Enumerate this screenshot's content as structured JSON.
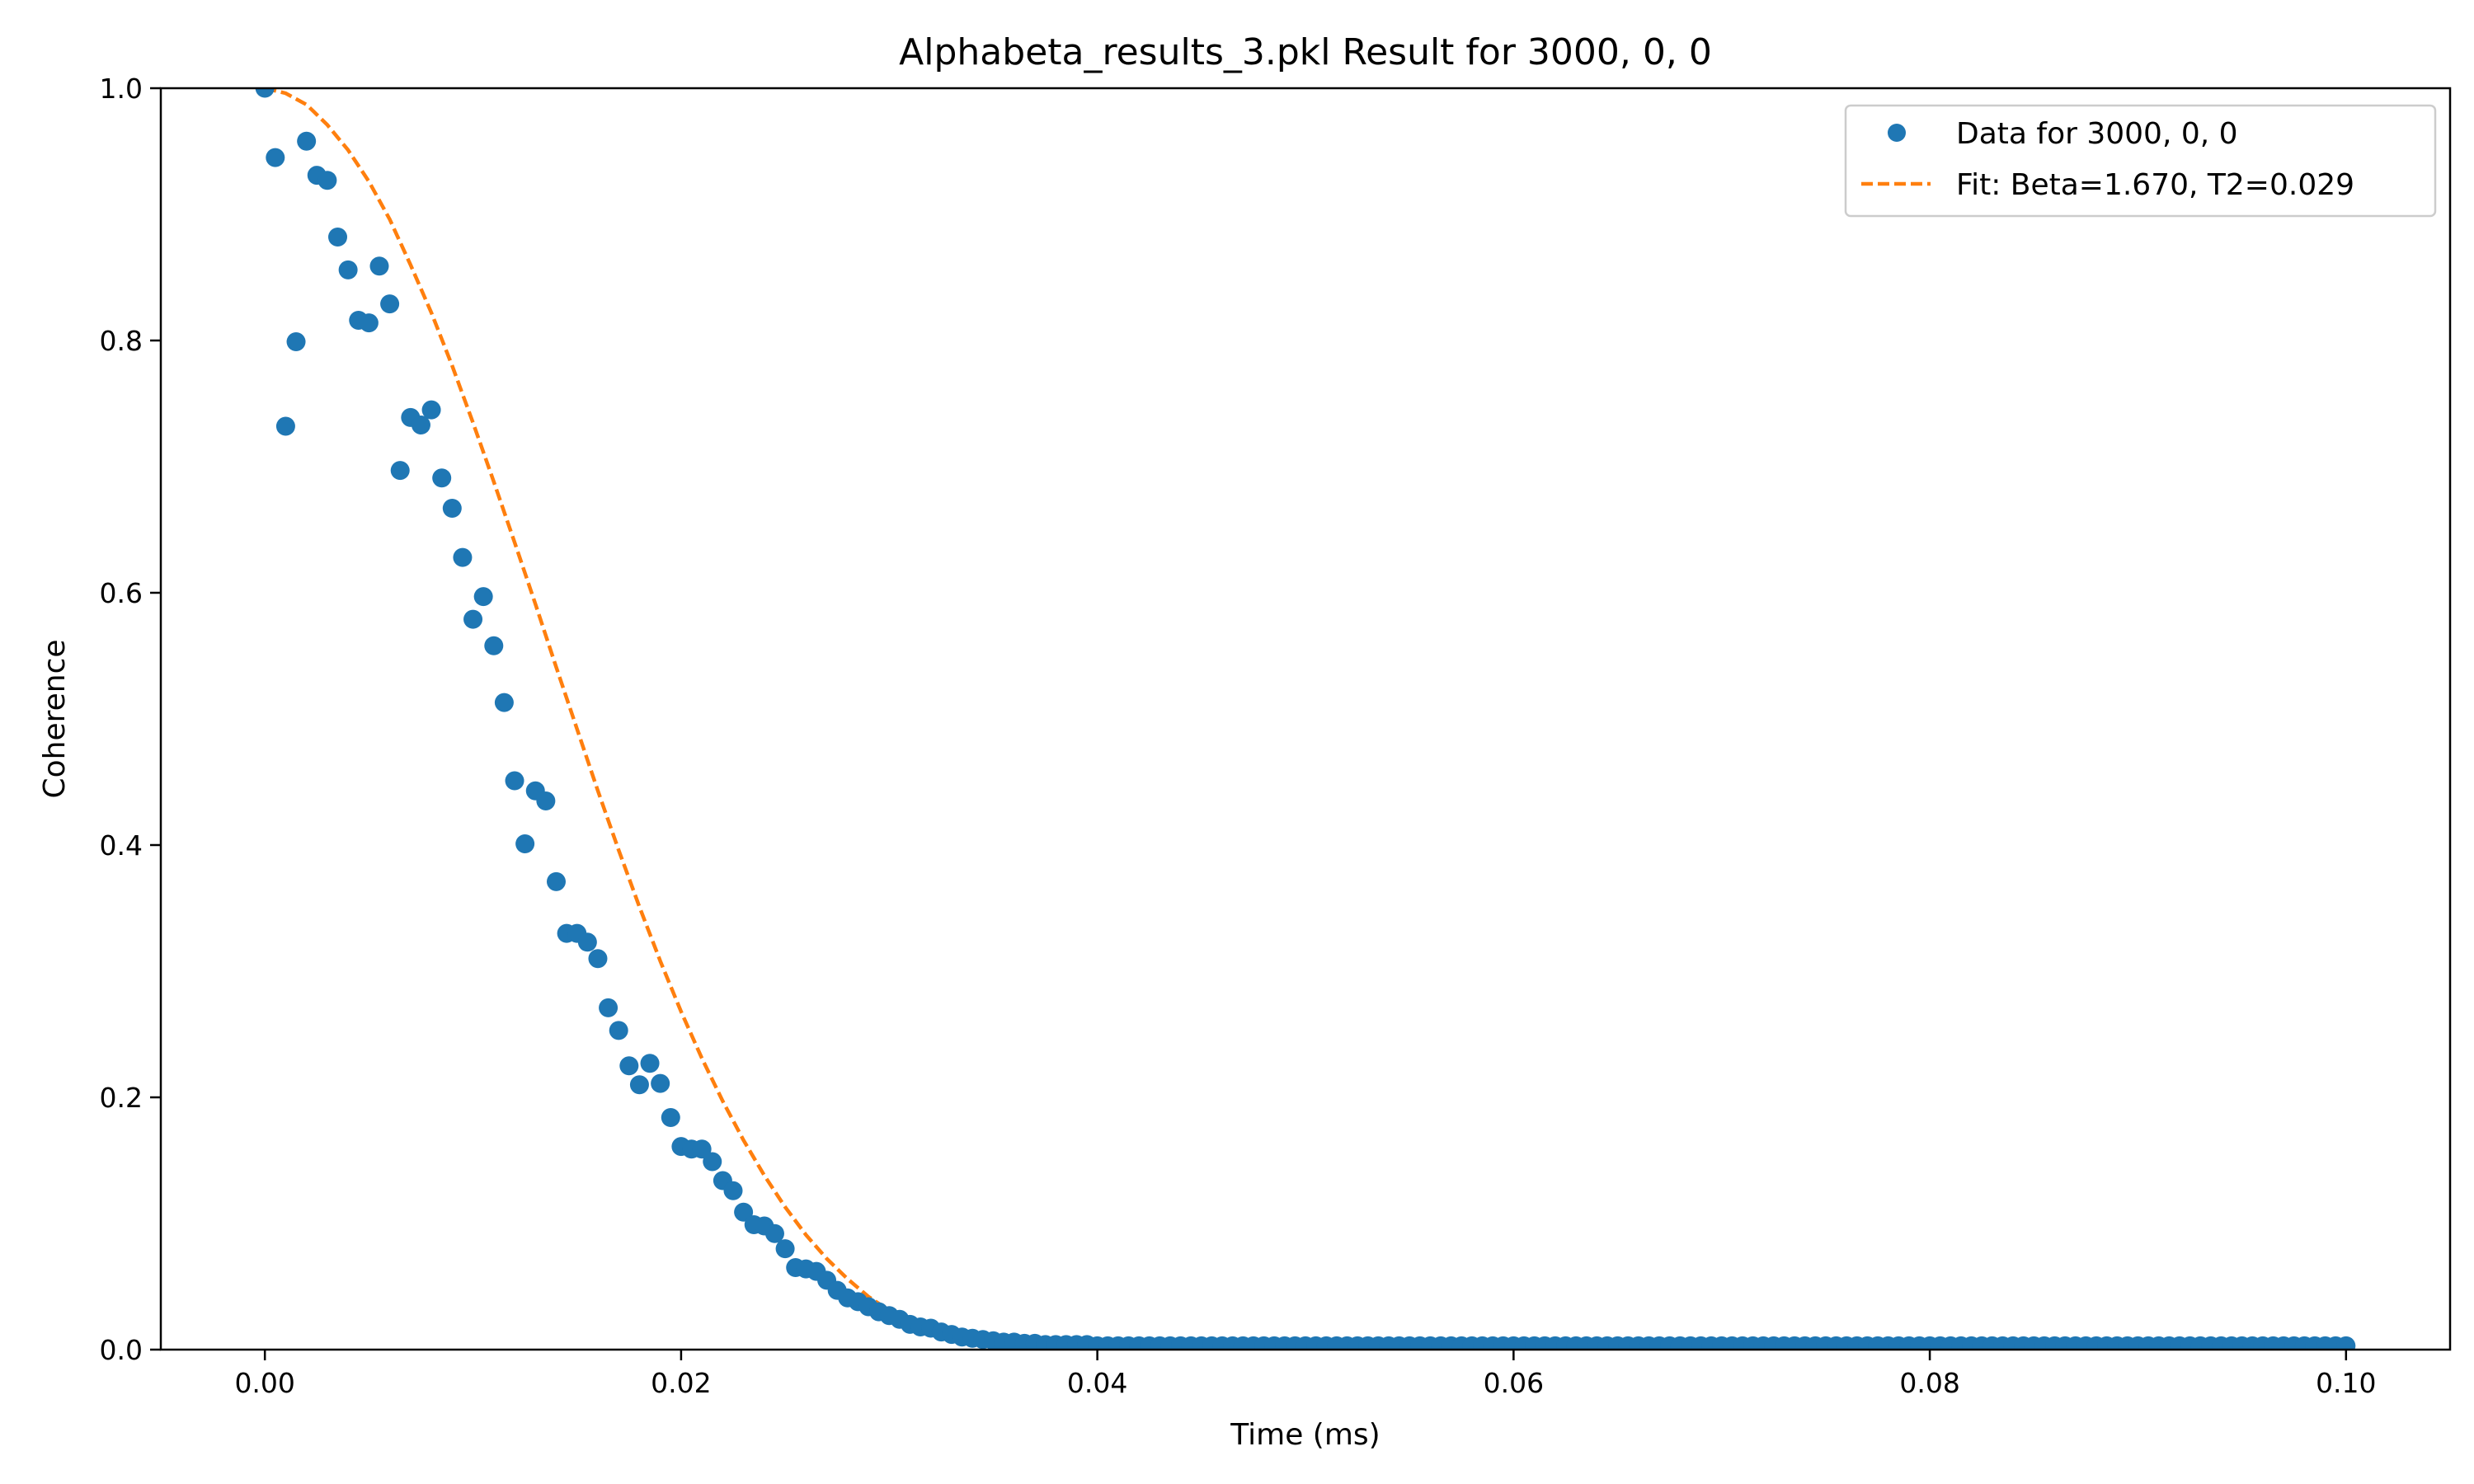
{
  "chart_data": {
    "type": "scatter",
    "title": "Alphabeta_results_3.pkl Result for 3000, 0, 0",
    "xlabel": "Time (ms)",
    "ylabel": "Coherence",
    "xlim": [
      -0.005,
      0.105
    ],
    "ylim": [
      0.0,
      1.0
    ],
    "xticks": [
      0.0,
      0.02,
      0.04,
      0.06,
      0.08,
      0.1
    ],
    "xtick_labels": [
      "0.00",
      "0.02",
      "0.04",
      "0.06",
      "0.08",
      "0.10"
    ],
    "yticks": [
      0.0,
      0.2,
      0.4,
      0.6,
      0.8,
      1.0
    ],
    "ytick_labels": [
      "0.0",
      "0.2",
      "0.4",
      "0.6",
      "0.8",
      "1.0"
    ],
    "grid": false,
    "legend_position": "top-right",
    "series": [
      {
        "name": "Data for 3000, 0, 0",
        "kind": "scatter",
        "color": "#1f77b4",
        "x": [
          0.0,
          0.0005,
          0.001,
          0.0015,
          0.002,
          0.0025,
          0.003,
          0.0035,
          0.004,
          0.0045,
          0.005,
          0.0055,
          0.006,
          0.0065,
          0.007,
          0.0075,
          0.008,
          0.0085,
          0.009,
          0.0095,
          0.01,
          0.0105,
          0.011,
          0.0115,
          0.012,
          0.0125,
          0.013,
          0.0135,
          0.014,
          0.0145,
          0.015,
          0.0155,
          0.016,
          0.0165,
          0.017,
          0.0175,
          0.018,
          0.0185,
          0.019,
          0.0195,
          0.02,
          0.0205,
          0.021,
          0.0215,
          0.022,
          0.0225,
          0.023,
          0.0235,
          0.024,
          0.0245,
          0.025,
          0.0255,
          0.026,
          0.0265,
          0.027,
          0.0275,
          0.028,
          0.0285,
          0.029,
          0.0295,
          0.03,
          0.0305,
          0.031,
          0.0315,
          0.032,
          0.0325,
          0.033,
          0.0335,
          0.034,
          0.0345,
          0.035,
          0.0355,
          0.036,
          0.0365,
          0.037,
          0.0375,
          0.038,
          0.0385,
          0.039,
          0.0395,
          0.04
        ],
        "y": [
          1.0,
          0.945,
          0.732,
          0.799,
          0.958,
          0.931,
          0.927,
          0.882,
          0.856,
          0.816,
          0.814,
          0.859,
          0.829,
          0.697,
          0.739,
          0.733,
          0.745,
          0.691,
          0.667,
          0.628,
          0.579,
          0.597,
          0.558,
          0.513,
          0.451,
          0.401,
          0.443,
          0.435,
          0.371,
          0.33,
          0.33,
          0.323,
          0.31,
          0.271,
          0.253,
          0.225,
          0.21,
          0.227,
          0.211,
          0.184,
          0.161,
          0.159,
          0.159,
          0.149,
          0.134,
          0.126,
          0.109,
          0.099,
          0.098,
          0.092,
          0.08,
          0.065,
          0.064,
          0.062,
          0.055,
          0.047,
          0.041,
          0.038,
          0.034,
          0.03,
          0.027,
          0.024,
          0.02,
          0.018,
          0.017,
          0.014,
          0.012,
          0.01,
          0.009,
          0.008,
          0.007,
          0.006,
          0.006,
          0.005,
          0.005,
          0.004,
          0.004,
          0.004,
          0.004,
          0.004,
          0.003
        ],
        "x_tail_start": 0.0405,
        "x_tail_end": 0.1,
        "x_tail_step": 0.0005,
        "y_tail": 0.003
      },
      {
        "name": "Fit: Beta=1.670, T2=0.029",
        "kind": "line",
        "style": "dashed",
        "color": "#ff7f0e",
        "x": [
          0.0,
          0.001,
          0.002,
          0.003,
          0.004,
          0.005,
          0.006,
          0.007,
          0.008,
          0.009,
          0.01,
          0.011,
          0.012,
          0.013,
          0.014,
          0.015,
          0.016,
          0.017,
          0.018,
          0.019,
          0.02,
          0.021,
          0.022,
          0.023,
          0.024,
          0.025,
          0.026,
          0.027,
          0.028,
          0.029,
          0.03,
          0.031,
          0.032,
          0.033,
          0.034,
          0.035,
          0.036,
          0.037,
          0.038,
          0.039,
          0.04,
          0.045,
          0.05,
          0.06,
          0.07,
          0.08,
          0.09,
          0.1
        ],
        "y": [
          1.0,
          0.996,
          0.987,
          0.971,
          0.951,
          0.926,
          0.896,
          0.86,
          0.822,
          0.78,
          0.735,
          0.688,
          0.64,
          0.591,
          0.541,
          0.492,
          0.443,
          0.396,
          0.351,
          0.308,
          0.268,
          0.231,
          0.197,
          0.166,
          0.138,
          0.113,
          0.091,
          0.072,
          0.056,
          0.042,
          0.031,
          0.022,
          0.015,
          0.01,
          0.006,
          0.004,
          0.002,
          0.001,
          0.0007,
          0.0004,
          0.0002,
          0.0,
          0.0,
          0.0,
          0.0,
          0.0,
          0.0,
          0.0
        ]
      }
    ]
  }
}
